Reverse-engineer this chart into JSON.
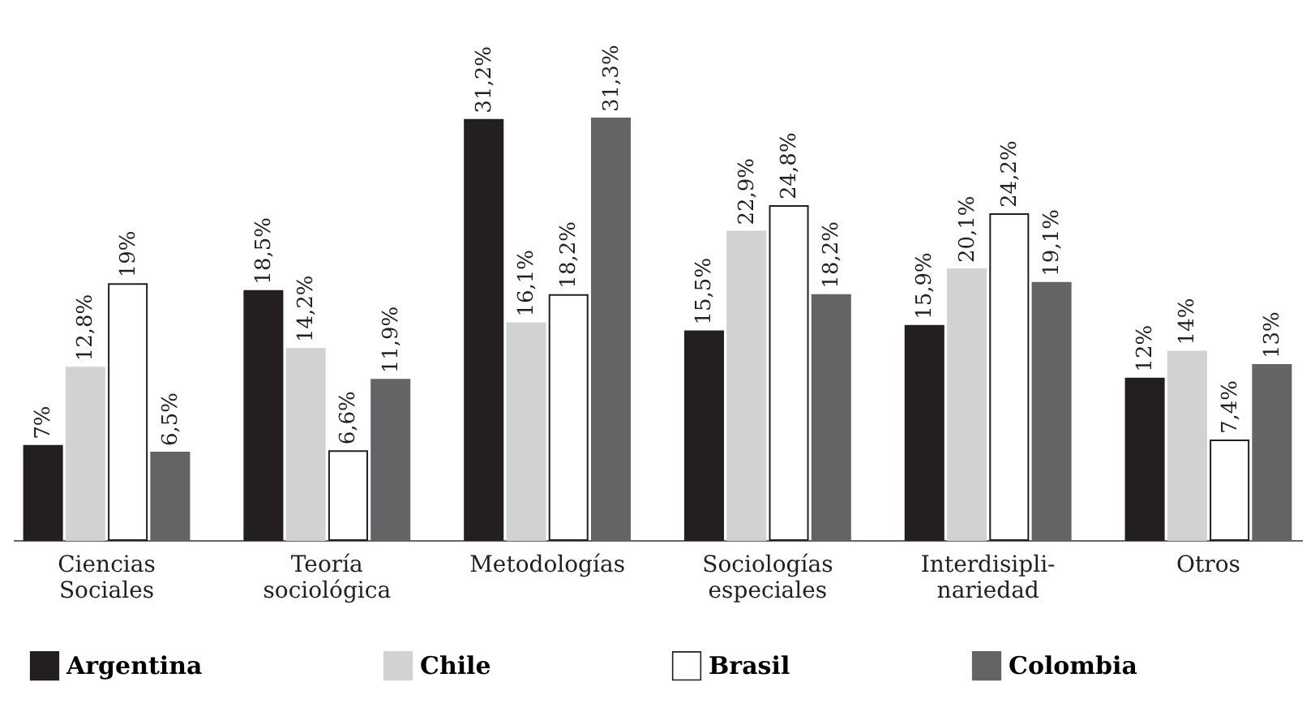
{
  "chart_data": {
    "type": "bar",
    "categories": [
      "Ciencias\nSociales",
      "Teoría\nsociológica",
      "Metodologías",
      "Sociologías\nespeciales",
      "Interdisipli-\nnariedad",
      "Otros"
    ],
    "series": [
      {
        "name": "Argentina",
        "color": "#231f20",
        "values": [
          7,
          18.5,
          31.2,
          15.5,
          15.9,
          12
        ],
        "value_labels": [
          "7%",
          "18,5%",
          "31,2%",
          "15,5%",
          "15,9%",
          "12%"
        ]
      },
      {
        "name": "Chile",
        "color": "#d1d2d4",
        "values": [
          12.8,
          14.2,
          16.1,
          22.9,
          20.1,
          14
        ],
        "value_labels": [
          "12,8%",
          "14,2%",
          "16,1%",
          "22,9%",
          "20,1%",
          "14%"
        ]
      },
      {
        "name": "Brasil",
        "color": "#ffffff",
        "values": [
          19,
          6.6,
          18.2,
          24.8,
          24.2,
          7.4
        ],
        "value_labels": [
          "19%",
          "6,6%",
          "18,2%",
          "24,8%",
          "24,2%",
          "7,4%"
        ]
      },
      {
        "name": "Colombia",
        "color": "#636466",
        "values": [
          6.5,
          11.9,
          31.3,
          18.2,
          19.1,
          13
        ],
        "value_labels": [
          "6,5%",
          "11,9%",
          "31,3%",
          "18,2%",
          "19,1%",
          "13%"
        ]
      }
    ],
    "grid": false,
    "legend": "bottom"
  }
}
